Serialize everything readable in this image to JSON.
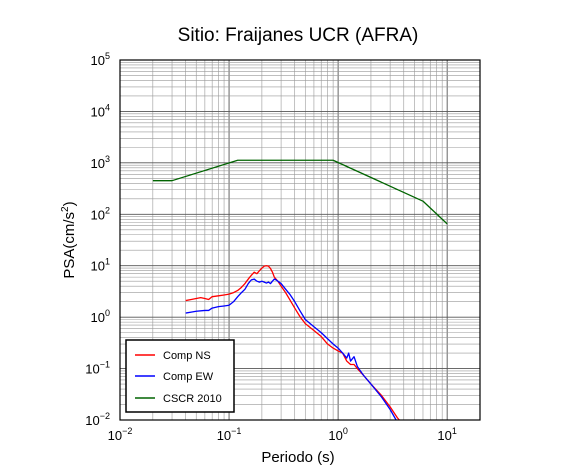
{
  "chart_data": {
    "type": "line",
    "title": "Sitio: Fraijanes UCR (AFRA)",
    "xlabel": "Periodo (s)",
    "ylabel_base": "PSA(cm/s",
    "ylabel_exp": "2",
    "ylabel_close": ")",
    "x_scale": "log",
    "y_scale": "log",
    "xlim": [
      0.01,
      20
    ],
    "ylim": [
      0.01,
      100000
    ],
    "grid": true,
    "legend_position": "bottom-left",
    "x_ticks": [
      {
        "base": "10",
        "exp": "−2",
        "value": 0.01
      },
      {
        "base": "10",
        "exp": "−1",
        "value": 0.1
      },
      {
        "base": "10",
        "exp": "0",
        "value": 1
      },
      {
        "base": "10",
        "exp": "1",
        "value": 10
      }
    ],
    "y_ticks": [
      {
        "base": "10",
        "exp": "−2",
        "value": 0.01
      },
      {
        "base": "10",
        "exp": "−1",
        "value": 0.1
      },
      {
        "base": "10",
        "exp": "0",
        "value": 1
      },
      {
        "base": "10",
        "exp": "1",
        "value": 10
      },
      {
        "base": "10",
        "exp": "2",
        "value": 100
      },
      {
        "base": "10",
        "exp": "3",
        "value": 1000
      },
      {
        "base": "10",
        "exp": "4",
        "value": 10000
      },
      {
        "base": "10",
        "exp": "5",
        "value": 100000
      }
    ],
    "series": [
      {
        "name": "Comp NS",
        "color": "#ff0000",
        "points": [
          [
            0.04,
            2.1
          ],
          [
            0.045,
            2.2
          ],
          [
            0.05,
            2.3
          ],
          [
            0.055,
            2.4
          ],
          [
            0.06,
            2.3
          ],
          [
            0.065,
            2.2
          ],
          [
            0.07,
            2.5
          ],
          [
            0.08,
            2.6
          ],
          [
            0.09,
            2.7
          ],
          [
            0.1,
            2.8
          ],
          [
            0.11,
            3.0
          ],
          [
            0.12,
            3.3
          ],
          [
            0.13,
            3.8
          ],
          [
            0.14,
            4.5
          ],
          [
            0.15,
            5.5
          ],
          [
            0.16,
            6.5
          ],
          [
            0.17,
            7.5
          ],
          [
            0.18,
            7.0
          ],
          [
            0.19,
            8.0
          ],
          [
            0.2,
            9.0
          ],
          [
            0.21,
            9.8
          ],
          [
            0.22,
            10.0
          ],
          [
            0.23,
            9.8
          ],
          [
            0.24,
            8.8
          ],
          [
            0.25,
            7.5
          ],
          [
            0.26,
            6.0
          ],
          [
            0.28,
            5.0
          ],
          [
            0.3,
            4.0
          ],
          [
            0.33,
            3.0
          ],
          [
            0.36,
            2.2
          ],
          [
            0.4,
            1.5
          ],
          [
            0.45,
            1.0
          ],
          [
            0.5,
            0.75
          ],
          [
            0.6,
            0.55
          ],
          [
            0.7,
            0.42
          ],
          [
            0.8,
            0.3
          ],
          [
            0.9,
            0.25
          ],
          [
            1.0,
            0.22
          ],
          [
            1.1,
            0.2
          ],
          [
            1.2,
            0.14
          ],
          [
            1.3,
            0.12
          ],
          [
            1.4,
            0.12
          ],
          [
            1.5,
            0.1
          ],
          [
            1.7,
            0.075
          ],
          [
            2.0,
            0.05
          ],
          [
            2.5,
            0.03
          ],
          [
            3.0,
            0.018
          ],
          [
            3.5,
            0.011
          ],
          [
            4.0,
            0.008
          ]
        ]
      },
      {
        "name": "Comp EW",
        "color": "#0000ff",
        "points": [
          [
            0.04,
            1.2
          ],
          [
            0.045,
            1.25
          ],
          [
            0.05,
            1.3
          ],
          [
            0.06,
            1.35
          ],
          [
            0.065,
            1.35
          ],
          [
            0.07,
            1.5
          ],
          [
            0.08,
            1.6
          ],
          [
            0.09,
            1.65
          ],
          [
            0.1,
            1.7
          ],
          [
            0.11,
            2.0
          ],
          [
            0.12,
            2.5
          ],
          [
            0.13,
            3.0
          ],
          [
            0.14,
            3.5
          ],
          [
            0.15,
            4.5
          ],
          [
            0.16,
            5.3
          ],
          [
            0.17,
            5.5
          ],
          [
            0.18,
            5.0
          ],
          [
            0.19,
            4.8
          ],
          [
            0.2,
            5.0
          ],
          [
            0.21,
            4.8
          ],
          [
            0.22,
            4.6
          ],
          [
            0.23,
            4.8
          ],
          [
            0.24,
            4.5
          ],
          [
            0.25,
            5.0
          ],
          [
            0.26,
            5.5
          ],
          [
            0.27,
            5.3
          ],
          [
            0.28,
            5.0
          ],
          [
            0.3,
            4.5
          ],
          [
            0.33,
            3.5
          ],
          [
            0.36,
            2.8
          ],
          [
            0.4,
            2.0
          ],
          [
            0.45,
            1.3
          ],
          [
            0.5,
            0.9
          ],
          [
            0.6,
            0.65
          ],
          [
            0.7,
            0.5
          ],
          [
            0.8,
            0.38
          ],
          [
            0.9,
            0.3
          ],
          [
            1.0,
            0.25
          ],
          [
            1.1,
            0.2
          ],
          [
            1.2,
            0.16
          ],
          [
            1.25,
            0.2
          ],
          [
            1.3,
            0.14
          ],
          [
            1.4,
            0.17
          ],
          [
            1.5,
            0.11
          ],
          [
            1.7,
            0.075
          ],
          [
            2.0,
            0.05
          ],
          [
            2.5,
            0.028
          ],
          [
            3.0,
            0.016
          ],
          [
            3.4,
            0.01
          ]
        ]
      },
      {
        "name": "CSCR 2010",
        "color": "#006400",
        "points": [
          [
            0.02,
            450
          ],
          [
            0.03,
            450
          ],
          [
            0.12,
            1125
          ],
          [
            0.9,
            1125
          ],
          [
            6.0,
            180
          ],
          [
            10.0,
            65
          ]
        ]
      }
    ]
  }
}
